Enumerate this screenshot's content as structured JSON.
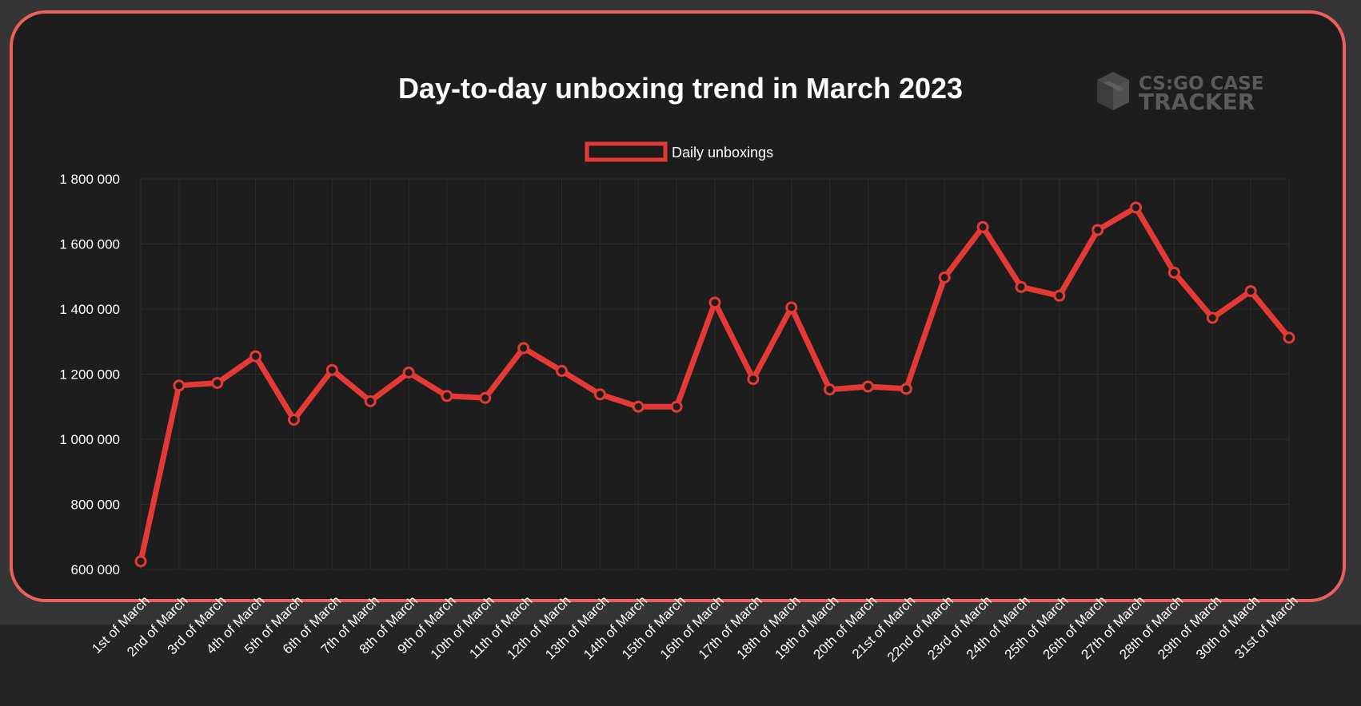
{
  "colors": {
    "accent": "#e53935",
    "card_border": "#e9605c",
    "card_bg": "#1d1d1d",
    "page_bg": "#353535",
    "text": "#ffffff",
    "grid": "#2c2c2c",
    "logo": "#5a5a5a"
  },
  "logo": {
    "line1": "CS:GO CASE",
    "line2": "TRACKER",
    "icon": "cube-box-icon"
  },
  "chart_data": {
    "type": "line",
    "title": "Day-to-day unboxing trend in March 2023",
    "xlabel": "",
    "ylabel": "",
    "ylim": [
      600000,
      1800000
    ],
    "yticks": [
      600000,
      800000,
      1000000,
      1200000,
      1400000,
      1600000,
      1800000
    ],
    "ytick_labels": [
      "600 000",
      "800 000",
      "1 000 000",
      "1 200 000",
      "1 400 000",
      "1 600 000",
      "1 800 000"
    ],
    "grid": true,
    "legend_position": "top-center",
    "categories": [
      "1st of March",
      "2nd of March",
      "3rd of March",
      "4th of March",
      "5th of March",
      "6th of March",
      "7th of March",
      "8th of March",
      "9th of March",
      "10th of March",
      "11th of March",
      "12th of March",
      "13th of March",
      "14th of March",
      "15th of March",
      "16th of March",
      "17th of March",
      "18th of March",
      "19th of March",
      "20th of March",
      "21st of March",
      "22nd of March",
      "23rd of March",
      "24th of March",
      "25th of March",
      "26th of March",
      "27th of March",
      "28th of March",
      "29th of March",
      "30th of March",
      "31st of March"
    ],
    "series": [
      {
        "name": "Daily unboxings",
        "color": "#e53935",
        "values": [
          625000,
          1165000,
          1173000,
          1255000,
          1060000,
          1213000,
          1117000,
          1205000,
          1133000,
          1127000,
          1280000,
          1210000,
          1138000,
          1100000,
          1100000,
          1420000,
          1185000,
          1405000,
          1153000,
          1162000,
          1155000,
          1497000,
          1652000,
          1468000,
          1441000,
          1643000,
          1712000,
          1512000,
          1373000,
          1455000,
          1312000
        ]
      }
    ]
  }
}
